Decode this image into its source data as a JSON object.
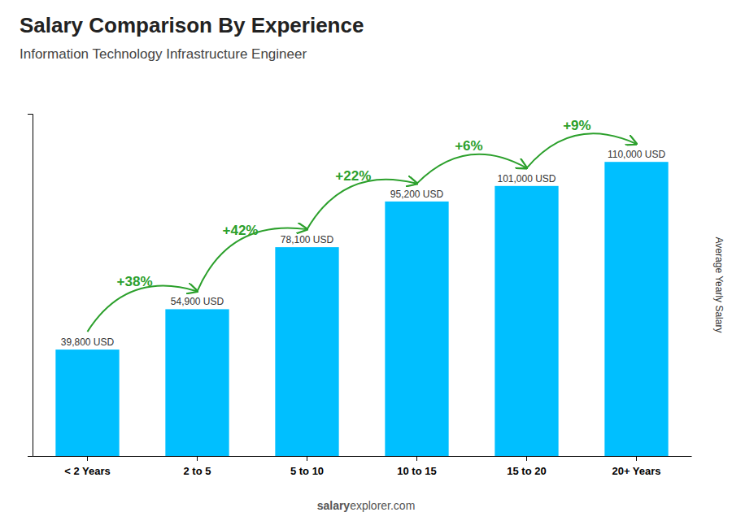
{
  "chart_data": {
    "type": "bar",
    "title": "Salary Comparison By Experience",
    "subtitle": "Information Technology Infrastructure Engineer",
    "ylabel": "Average Yearly Salary",
    "categories": [
      "< 2 Years",
      "2 to 5",
      "5 to 10",
      "10 to 15",
      "15 to 20",
      "20+ Years"
    ],
    "values": [
      39800,
      54900,
      78100,
      95200,
      101000,
      110000
    ],
    "value_labels": [
      "39,800 USD",
      "54,900 USD",
      "78,100 USD",
      "95,200 USD",
      "101,000 USD",
      "110,000 USD"
    ],
    "data_labels": true,
    "color": "#00BFFF",
    "ylim": [
      0,
      128000
    ],
    "tick_labels": "x",
    "annotations": [
      "+38%",
      "+42%",
      "+22%",
      "+6%",
      "+9%"
    ],
    "watermark": [
      "salary",
      "explorer.com"
    ]
  }
}
